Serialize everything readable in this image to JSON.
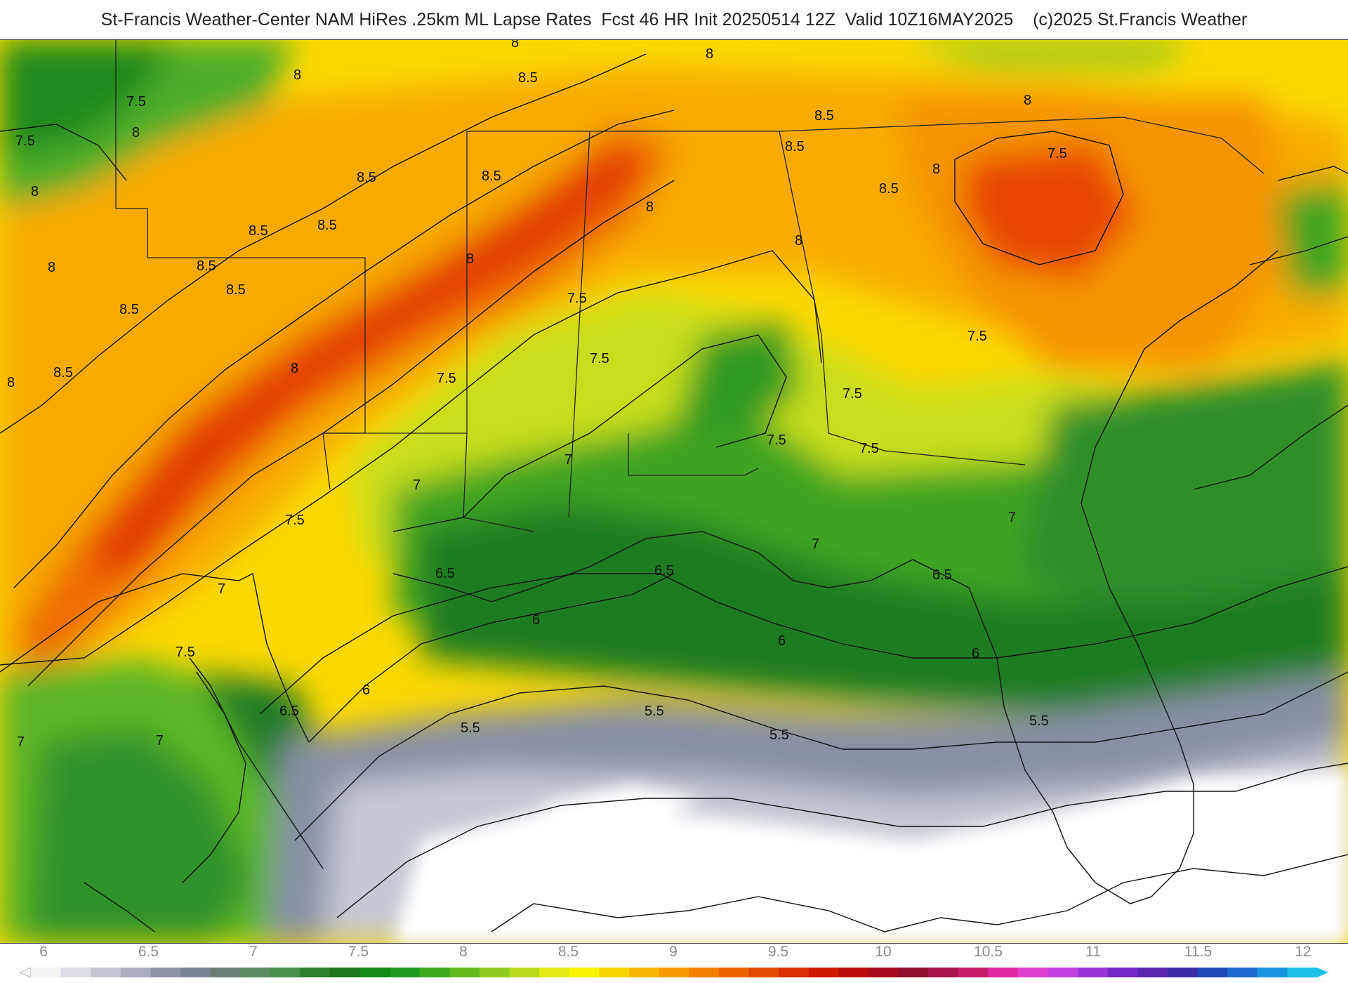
{
  "header": {
    "title": "St-Francis Weather-Center NAM HiRes .25km ML Lapse Rates  Fcst 46 HR Init 20250514 12Z  Valid 10Z16MAY2025    (c)2025 St.Francis Weather"
  },
  "map": {
    "contour_labels": [
      "8",
      "8",
      "8.5",
      "8",
      "7.5",
      "7.5",
      "8",
      "8",
      "8",
      "8.5",
      "8.5",
      "8.5",
      "8.5",
      "8.5",
      "8.5",
      "8",
      "8.5",
      "8",
      "7.5",
      "7.5",
      "8.5",
      "8.5",
      "8.5",
      "8",
      "8",
      "8",
      "7.5",
      "7.5",
      "7.5",
      "7.5",
      "7.5",
      "8",
      "8.5",
      "8",
      "7.5",
      "7.5",
      "7",
      "7",
      "7",
      "7",
      "7",
      "6.5",
      "6.5",
      "6.5",
      "6",
      "6",
      "6",
      "5.5",
      "5.5",
      "5.5",
      "5.5",
      "6.5",
      "6",
      "7",
      "7.5",
      "7"
    ]
  },
  "colorbar": {
    "ticks": [
      "6",
      "6.5",
      "7",
      "7.5",
      "8",
      "8.5",
      "9",
      "9.5",
      "10",
      "10.5",
      "11",
      "11.5",
      "12"
    ],
    "colors": [
      "#f2f2f5",
      "#dcdde4",
      "#c3c5d0",
      "#a9adbd",
      "#8e94a8",
      "#7a8396",
      "#6b7d76",
      "#5a8a5e",
      "#4b8f4a",
      "#2f7f2f",
      "#1f7a1f",
      "#138a13",
      "#1e9a1e",
      "#3daa1e",
      "#66bb1e",
      "#8fcb1e",
      "#bada1e",
      "#e3ea14",
      "#f8f300",
      "#f9d400",
      "#f8b600",
      "#f59a00",
      "#f27f00",
      "#ec6400",
      "#e54a00",
      "#db3000",
      "#cf1a00",
      "#bd0c0c",
      "#a80c1c",
      "#900c2c",
      "#a8144a",
      "#c71c6a",
      "#e028a0",
      "#e040d0",
      "#c040e0",
      "#9a34d8",
      "#7428c8",
      "#5a24b0",
      "#3c2ca8",
      "#2048b8",
      "#1b6ad0",
      "#1894e0",
      "#1cc0e8"
    ]
  }
}
